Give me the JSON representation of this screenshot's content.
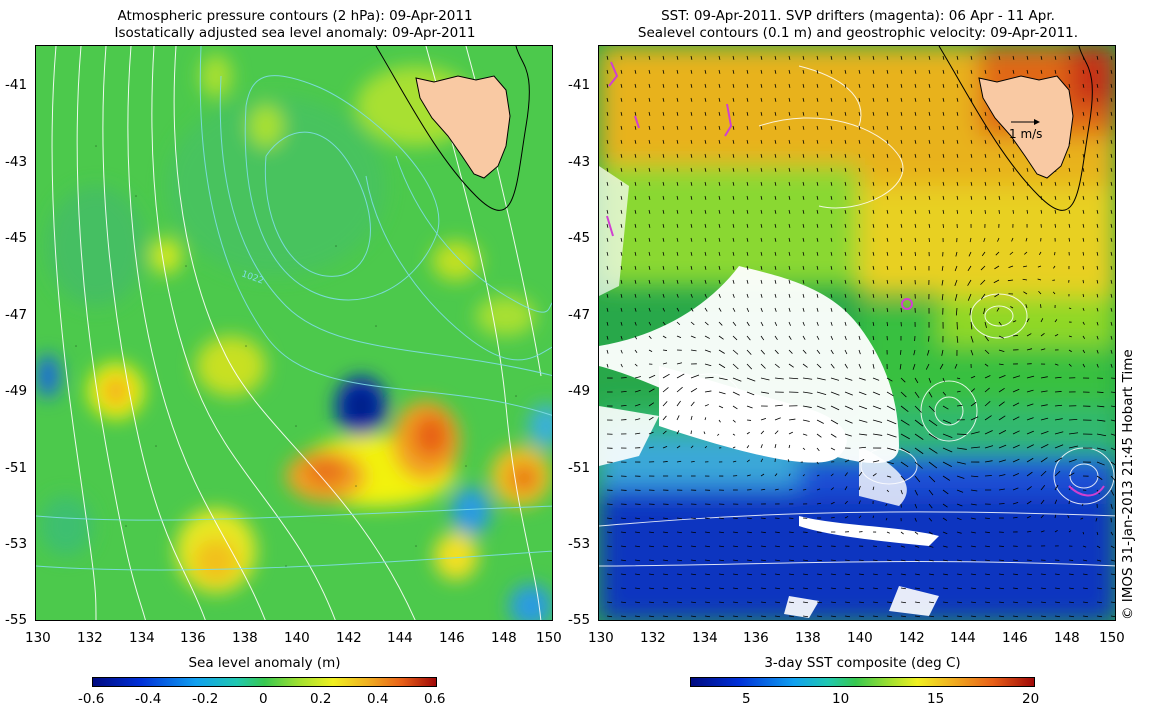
{
  "left_panel": {
    "title_line1": "Atmospheric pressure contours (2 hPa): 09-Apr-2011",
    "title_line2": "Isostatically adjusted sea level anomaly: 09-Apr-2011",
    "contour_label": "1022",
    "x_ticks": [
      "130",
      "132",
      "134",
      "136",
      "138",
      "140",
      "142",
      "144",
      "146",
      "148",
      "150"
    ],
    "y_ticks": [
      "-41",
      "-43",
      "-45",
      "-47",
      "-49",
      "-51",
      "-53",
      "-55"
    ],
    "colorbar_title": "Sea level anomaly (m)",
    "colorbar_ticks": [
      "-0.6",
      "-0.4",
      "-0.2",
      "0",
      "0.2",
      "0.4",
      "0.6"
    ]
  },
  "right_panel": {
    "title_line1": "SST: 09-Apr-2011. SVP drifters (magenta): 06 Apr - 11 Apr.",
    "title_line2": "Sealevel contours (0.1 m) and geostrophic velocity: 09-Apr-2011.",
    "velocity_scale_label": "1 m/s",
    "x_ticks": [
      "130",
      "132",
      "134",
      "136",
      "138",
      "140",
      "142",
      "144",
      "146",
      "148",
      "150"
    ],
    "y_ticks": [
      "-41",
      "-43",
      "-45",
      "-47",
      "-49",
      "-51",
      "-53",
      "-55"
    ],
    "colorbar_title": "3-day SST composite (deg C)",
    "colorbar_ticks": [
      "5",
      "10",
      "15",
      "20"
    ]
  },
  "credit": "© IMOS 31-Jan-2013 21:45 Hobart Time",
  "colors": {
    "land": "#f9c9a3",
    "sla_background": "#4cc94c",
    "contour_white": "#ffffff",
    "contour_cyan": "#7fdde6",
    "drifter_magenta": "#d040d0",
    "sst_cold": "#1a4fd6",
    "sst_warm": "#e8a21a"
  },
  "map_data": {
    "lon_range": [
      130,
      150
    ],
    "lat_range": [
      -55,
      -40
    ],
    "features": [
      {
        "name": "Tasmania",
        "type": "land",
        "approx_center": [
          146.7,
          -42.0
        ]
      },
      {
        "name": "positive sea level anomaly",
        "approx_center": [
          145.5,
          -50.5
        ],
        "value_m": 0.4
      },
      {
        "name": "positive sea level anomaly",
        "approx_center": [
          141.5,
          -51.2
        ],
        "value_m": 0.4
      },
      {
        "name": "negative sea level anomaly",
        "approx_center": [
          142.5,
          -49.5
        ],
        "value_m": -0.5
      },
      {
        "name": "negative sea level anomaly",
        "approx_center": [
          130.5,
          -48.8
        ],
        "value_m": -0.3
      }
    ]
  }
}
